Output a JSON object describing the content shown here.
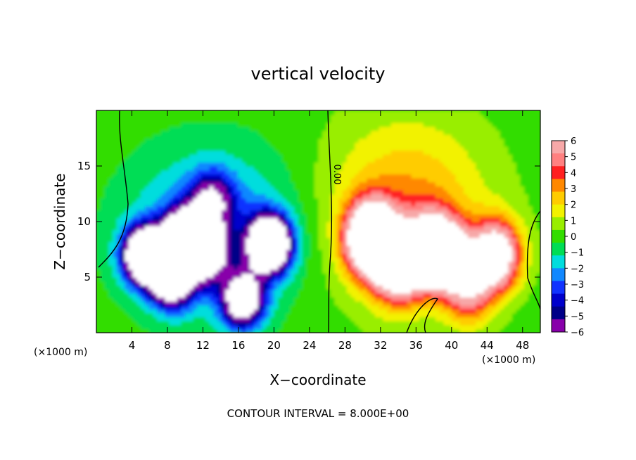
{
  "chart_data": {
    "type": "heatmap",
    "title": "vertical velocity",
    "xlabel": "X−coordinate",
    "ylabel": "Z−coordinate",
    "x_unit_left": "(×1000 m)",
    "x_unit_right": "(×1000 m)",
    "footer": "CONTOUR INTERVAL = 8.000E+00",
    "contour_label": "0.00",
    "xlim": [
      0,
      50
    ],
    "ylim": [
      0,
      20
    ],
    "x_ticks": [
      4,
      8,
      12,
      16,
      20,
      24,
      28,
      32,
      36,
      40,
      44,
      48
    ],
    "y_ticks": [
      5,
      10,
      15
    ],
    "colorbar": {
      "range": [
        -6,
        6
      ],
      "labels": [
        "6",
        "5",
        "4",
        "3",
        "2",
        "1",
        "0",
        "−1",
        "−2",
        "−3",
        "−4",
        "−5",
        "−6"
      ],
      "colors": [
        "#f7a8a8",
        "#ff8080",
        "#ff2020",
        "#ff8800",
        "#ffcc00",
        "#f2f200",
        "#99ee00",
        "#33dd00",
        "#00dd55",
        "#00dddd",
        "#1188ff",
        "#1133ff",
        "#0000cc",
        "#000088",
        "#8800aa"
      ]
    },
    "features": [
      {
        "kind": "downdraft",
        "x": 5.5,
        "z": 7.0,
        "amp": -13
      },
      {
        "kind": "downdraft",
        "x": 8.5,
        "z": 5.0,
        "amp": -11
      },
      {
        "kind": "downdraft",
        "x": 10.0,
        "z": 8.5,
        "amp": -12
      },
      {
        "kind": "downdraft",
        "x": 12.0,
        "z": 7.5,
        "amp": -11
      },
      {
        "kind": "downdraft",
        "x": 16.5,
        "z": 3.0,
        "amp": -9
      },
      {
        "kind": "downdraft",
        "x": 19.5,
        "z": 8.0,
        "amp": -13
      },
      {
        "kind": "downdraft",
        "x": 13.0,
        "z": 12.0,
        "amp": -5
      },
      {
        "kind": "updraft",
        "x": 31.0,
        "z": 8.5,
        "amp": 14
      },
      {
        "kind": "updraft",
        "x": 34.0,
        "z": 6.0,
        "amp": 9
      },
      {
        "kind": "updraft",
        "x": 37.5,
        "z": 7.5,
        "amp": 8
      },
      {
        "kind": "updraft",
        "x": 39.5,
        "z": 7.0,
        "amp": 7
      },
      {
        "kind": "updraft",
        "x": 45.0,
        "z": 7.0,
        "amp": 9
      },
      {
        "kind": "updraft",
        "x": 42.0,
        "z": 4.0,
        "amp": 5
      }
    ]
  }
}
